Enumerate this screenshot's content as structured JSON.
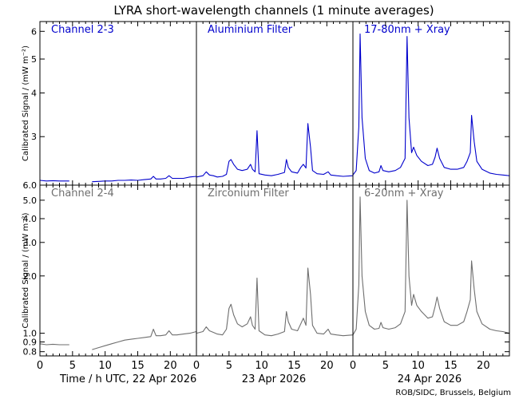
{
  "title": "LYRA short-wavelength channels (1 minute averages)",
  "credit": "ROB/SIDC, Brussels, Belgium",
  "xlabels": [
    "Time / h UTC, 22 Apr 2026",
    "23 Apr 2026",
    "24 Apr 2026"
  ],
  "colors": {
    "top": "#0000cc",
    "bottom": "#6e6e6e"
  },
  "chart_data": {
    "type": "line",
    "title": "LYRA short-wavelength channels (1 minute averages)",
    "xlim_hours": [
      0,
      24
    ],
    "xticks": [
      0,
      5,
      10,
      15,
      20
    ],
    "days": [
      "22 Apr 2026",
      "23 Apr 2026",
      "24 Apr 2026"
    ],
    "rows": [
      {
        "ylabel": "Calibrated Signal / (mW m⁻²)",
        "yscale": "log",
        "ylim": [
          2.18,
          6.4
        ],
        "yticks": [
          3,
          4,
          5,
          6
        ],
        "ytick_labels": [
          "3",
          "4",
          "5",
          "6"
        ],
        "series": [
          {
            "name": "Channel 2-3",
            "day": "22 Apr 2026",
            "segments": [
              [
                [
                  0,
                  2.25
                ],
                [
                  1,
                  2.24
                ],
                [
                  2,
                  2.245
                ],
                [
                  3,
                  2.24
                ],
                [
                  4.5,
                  2.24
                ]
              ],
              [
                [
                  8,
                  2.23
                ],
                [
                  9,
                  2.235
                ],
                [
                  10,
                  2.24
                ],
                [
                  11,
                  2.24
                ],
                [
                  12,
                  2.25
                ],
                [
                  13,
                  2.25
                ],
                [
                  14,
                  2.255
                ],
                [
                  15,
                  2.25
                ],
                [
                  16,
                  2.26
                ],
                [
                  17,
                  2.27
                ],
                [
                  17.4,
                  2.31
                ],
                [
                  17.8,
                  2.27
                ],
                [
                  18.5,
                  2.27
                ],
                [
                  19.3,
                  2.28
                ],
                [
                  19.8,
                  2.32
                ],
                [
                  20.3,
                  2.28
                ],
                [
                  21,
                  2.28
                ],
                [
                  22,
                  2.28
                ],
                [
                  23,
                  2.3
                ],
                [
                  24,
                  2.31
                ]
              ]
            ]
          },
          {
            "name": "Aluminium Filter",
            "day": "23 Apr 2026",
            "segments": [
              [
                [
                  0,
                  2.3
                ],
                [
                  1,
                  2.32
                ],
                [
                  1.5,
                  2.38
                ],
                [
                  2,
                  2.33
                ],
                [
                  2.6,
                  2.32
                ],
                [
                  3.2,
                  2.3
                ],
                [
                  4,
                  2.31
                ],
                [
                  4.6,
                  2.34
                ],
                [
                  5,
                  2.55
                ],
                [
                  5.3,
                  2.58
                ],
                [
                  5.7,
                  2.5
                ],
                [
                  6.3,
                  2.42
                ],
                [
                  7,
                  2.4
                ],
                [
                  7.8,
                  2.42
                ],
                [
                  8.3,
                  2.5
                ],
                [
                  8.6,
                  2.42
                ],
                [
                  9,
                  2.38
                ],
                [
                  9.3,
                  3.12
                ],
                [
                  9.6,
                  2.35
                ],
                [
                  10.5,
                  2.33
                ],
                [
                  11.5,
                  2.32
                ],
                [
                  12.5,
                  2.34
                ],
                [
                  13.5,
                  2.37
                ],
                [
                  13.8,
                  2.58
                ],
                [
                  14.1,
                  2.45
                ],
                [
                  14.6,
                  2.38
                ],
                [
                  15.5,
                  2.36
                ],
                [
                  16,
                  2.45
                ],
                [
                  16.4,
                  2.5
                ],
                [
                  16.8,
                  2.44
                ],
                [
                  17.1,
                  3.27
                ],
                [
                  17.5,
                  2.8
                ],
                [
                  17.8,
                  2.4
                ],
                [
                  18.5,
                  2.35
                ],
                [
                  19.5,
                  2.34
                ],
                [
                  20.2,
                  2.38
                ],
                [
                  20.6,
                  2.33
                ],
                [
                  21.5,
                  2.32
                ],
                [
                  22.5,
                  2.31
                ],
                [
                  24,
                  2.32
                ]
              ]
            ]
          },
          {
            "name": "17-80nm + Xray",
            "day": "24 Apr 2026",
            "segments": [
              [
                [
                  0,
                  2.33
                ],
                [
                  0.5,
                  2.4
                ],
                [
                  0.9,
                  3.2
                ],
                [
                  1.1,
                  5.9
                ],
                [
                  1.4,
                  3.4
                ],
                [
                  1.9,
                  2.6
                ],
                [
                  2.5,
                  2.4
                ],
                [
                  3.3,
                  2.36
                ],
                [
                  4,
                  2.38
                ],
                [
                  4.3,
                  2.48
                ],
                [
                  4.6,
                  2.4
                ],
                [
                  5.5,
                  2.38
                ],
                [
                  6.5,
                  2.4
                ],
                [
                  7.3,
                  2.45
                ],
                [
                  8,
                  2.6
                ],
                [
                  8.3,
                  5.8
                ],
                [
                  8.6,
                  3.4
                ],
                [
                  9,
                  2.7
                ],
                [
                  9.3,
                  2.8
                ],
                [
                  9.8,
                  2.65
                ],
                [
                  10.5,
                  2.55
                ],
                [
                  11.5,
                  2.48
                ],
                [
                  12.2,
                  2.5
                ],
                [
                  12.6,
                  2.62
                ],
                [
                  12.9,
                  2.78
                ],
                [
                  13.3,
                  2.6
                ],
                [
                  14,
                  2.45
                ],
                [
                  15,
                  2.42
                ],
                [
                  16,
                  2.42
                ],
                [
                  17,
                  2.45
                ],
                [
                  17.5,
                  2.55
                ],
                [
                  18,
                  2.7
                ],
                [
                  18.2,
                  3.45
                ],
                [
                  18.6,
                  2.9
                ],
                [
                  19,
                  2.55
                ],
                [
                  19.8,
                  2.42
                ],
                [
                  21,
                  2.36
                ],
                [
                  22,
                  2.34
                ],
                [
                  23,
                  2.33
                ],
                [
                  24,
                  2.32
                ]
              ]
            ]
          }
        ]
      },
      {
        "ylabel": "Calibrated Signal / (mW m⁻²)",
        "yscale": "log",
        "ylim": [
          0.76,
          6.0
        ],
        "yticks": [
          0.8,
          0.9,
          1.0,
          2.0,
          3.0,
          4.0,
          5.0,
          6.0
        ],
        "ytick_labels": [
          "0.8",
          "0.9",
          "1.0",
          "2.0",
          "3.0",
          "4.0",
          "5.0",
          "6.0"
        ],
        "series": [
          {
            "name": "Channel 2-4",
            "day": "22 Apr 2026",
            "segments": [
              [
                [
                  0,
                  0.88
                ],
                [
                  1,
                  0.87
                ],
                [
                  2,
                  0.875
                ],
                [
                  3,
                  0.87
                ],
                [
                  4.5,
                  0.87
                ]
              ],
              [
                [
                  8,
                  0.82
                ],
                [
                  9,
                  0.84
                ],
                [
                  10,
                  0.86
                ],
                [
                  11,
                  0.88
                ],
                [
                  12,
                  0.9
                ],
                [
                  13,
                  0.92
                ],
                [
                  14,
                  0.93
                ],
                [
                  15,
                  0.94
                ],
                [
                  16,
                  0.95
                ],
                [
                  17,
                  0.96
                ],
                [
                  17.4,
                  1.05
                ],
                [
                  17.8,
                  0.97
                ],
                [
                  18.5,
                  0.97
                ],
                [
                  19.3,
                  0.98
                ],
                [
                  19.8,
                  1.03
                ],
                [
                  20.3,
                  0.98
                ],
                [
                  21,
                  0.98
                ],
                [
                  22,
                  0.99
                ],
                [
                  23,
                  1.0
                ],
                [
                  24,
                  1.02
                ]
              ]
            ]
          },
          {
            "name": "Zirconium Filter",
            "day": "23 Apr 2026",
            "segments": [
              [
                [
                  0,
                  1.0
                ],
                [
                  1,
                  1.02
                ],
                [
                  1.5,
                  1.08
                ],
                [
                  2,
                  1.03
                ],
                [
                  2.6,
                  1.01
                ],
                [
                  3.2,
                  0.99
                ],
                [
                  4,
                  0.98
                ],
                [
                  4.6,
                  1.05
                ],
                [
                  5,
                  1.35
                ],
                [
                  5.3,
                  1.42
                ],
                [
                  5.7,
                  1.25
                ],
                [
                  6.3,
                  1.12
                ],
                [
                  7,
                  1.08
                ],
                [
                  7.8,
                  1.12
                ],
                [
                  8.3,
                  1.22
                ],
                [
                  8.6,
                  1.1
                ],
                [
                  9,
                  1.05
                ],
                [
                  9.3,
                  1.95
                ],
                [
                  9.6,
                  1.03
                ],
                [
                  10.5,
                  0.98
                ],
                [
                  11.5,
                  0.97
                ],
                [
                  12.5,
                  0.99
                ],
                [
                  13.5,
                  1.02
                ],
                [
                  13.8,
                  1.3
                ],
                [
                  14.1,
                  1.15
                ],
                [
                  14.6,
                  1.05
                ],
                [
                  15.5,
                  1.03
                ],
                [
                  16,
                  1.12
                ],
                [
                  16.4,
                  1.2
                ],
                [
                  16.8,
                  1.1
                ],
                [
                  17.1,
                  2.2
                ],
                [
                  17.5,
                  1.6
                ],
                [
                  17.8,
                  1.1
                ],
                [
                  18.5,
                  1.0
                ],
                [
                  19.5,
                  0.99
                ],
                [
                  20.2,
                  1.05
                ],
                [
                  20.6,
                  0.99
                ],
                [
                  21.5,
                  0.98
                ],
                [
                  22.5,
                  0.97
                ],
                [
                  24,
                  0.98
                ]
              ]
            ]
          },
          {
            "name": "6-20nm + Xray",
            "day": "24 Apr 2026",
            "segments": [
              [
                [
                  0,
                  0.98
                ],
                [
                  0.5,
                  1.05
                ],
                [
                  0.9,
                  1.8
                ],
                [
                  1.1,
                  5.2
                ],
                [
                  1.4,
                  2.0
                ],
                [
                  1.9,
                  1.3
                ],
                [
                  2.5,
                  1.1
                ],
                [
                  3.3,
                  1.05
                ],
                [
                  4,
                  1.06
                ],
                [
                  4.3,
                  1.14
                ],
                [
                  4.6,
                  1.07
                ],
                [
                  5.5,
                  1.05
                ],
                [
                  6.5,
                  1.07
                ],
                [
                  7.3,
                  1.12
                ],
                [
                  8,
                  1.3
                ],
                [
                  8.3,
                  5.0
                ],
                [
                  8.6,
                  2.0
                ],
                [
                  9,
                  1.4
                ],
                [
                  9.3,
                  1.6
                ],
                [
                  9.8,
                  1.4
                ],
                [
                  10.5,
                  1.3
                ],
                [
                  11.5,
                  1.2
                ],
                [
                  12.2,
                  1.22
                ],
                [
                  12.6,
                  1.38
                ],
                [
                  12.9,
                  1.55
                ],
                [
                  13.3,
                  1.35
                ],
                [
                  14,
                  1.15
                ],
                [
                  15,
                  1.1
                ],
                [
                  16,
                  1.1
                ],
                [
                  17,
                  1.15
                ],
                [
                  17.5,
                  1.3
                ],
                [
                  18,
                  1.5
                ],
                [
                  18.2,
                  2.4
                ],
                [
                  18.6,
                  1.7
                ],
                [
                  19,
                  1.3
                ],
                [
                  19.8,
                  1.12
                ],
                [
                  21,
                  1.05
                ],
                [
                  22,
                  1.03
                ],
                [
                  23,
                  1.02
                ],
                [
                  24,
                  1.0
                ]
              ]
            ]
          }
        ]
      }
    ]
  }
}
